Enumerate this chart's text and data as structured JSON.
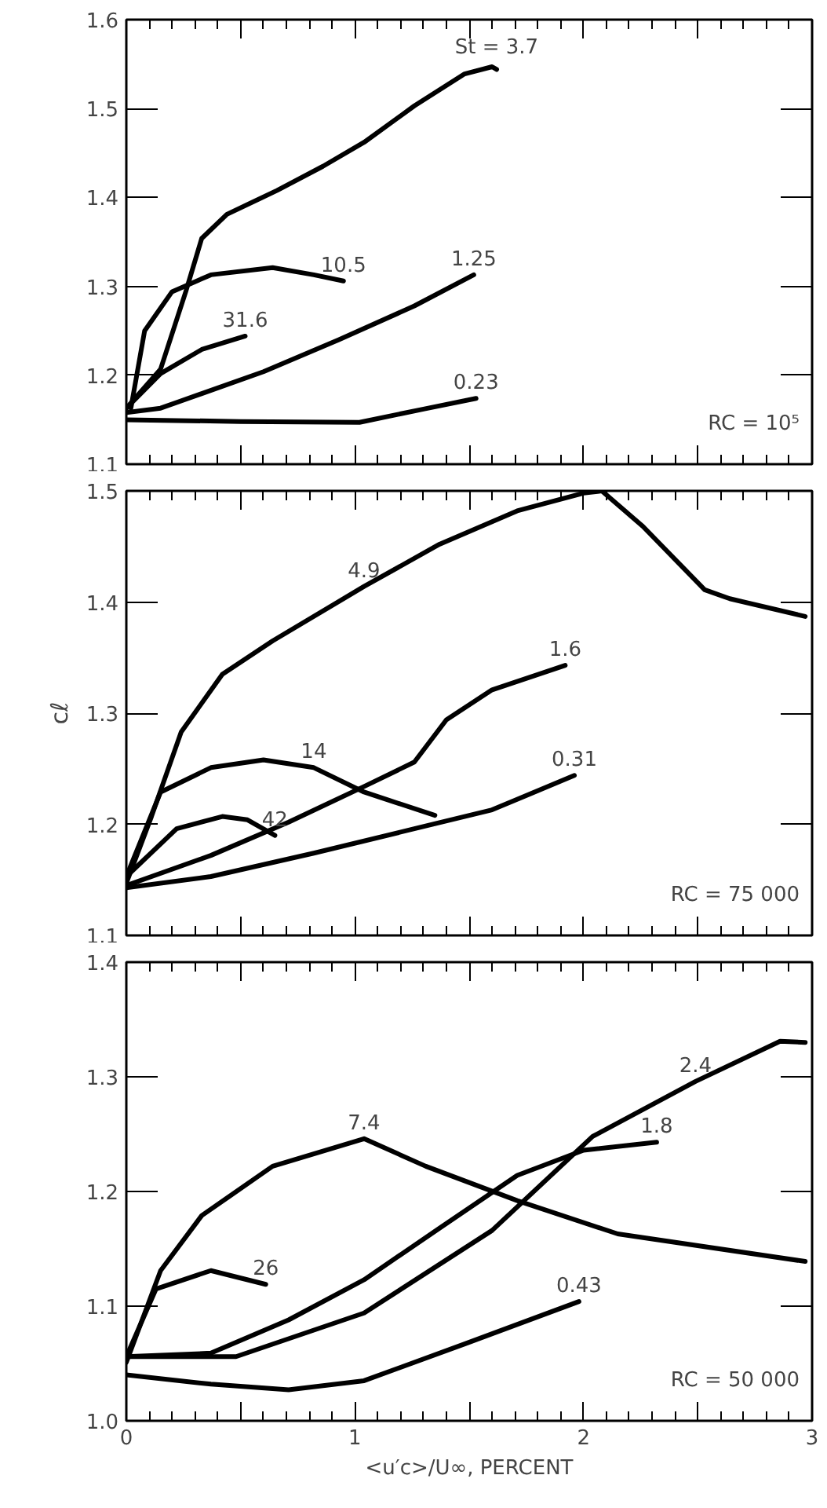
{
  "chart_data": [
    {
      "type": "line",
      "xlim": [
        0,
        3
      ],
      "ylim": [
        1.1,
        1.6
      ],
      "xticks": [
        0,
        {
          "value": 0.5,
          "label": null
        },
        1,
        {
          "value": 1.5,
          "label": null
        },
        2,
        {
          "value": 2.5,
          "label": null
        },
        3
      ],
      "yticks": [
        1.1,
        1.2,
        1.3,
        1.4,
        1.5,
        1.6
      ],
      "tick_labels": "y",
      "grid": false,
      "line_style": "solid",
      "marker": "none",
      "series": [
        {
          "color": "#000000",
          "x": [
            0,
            0.15,
            0.26,
            0.33,
            0.44,
            0.66,
            0.86,
            1.04,
            1.26,
            1.48,
            1.6,
            1.62
          ],
          "values": [
            1.163,
            1.207,
            1.294,
            1.354,
            1.381,
            1.408,
            1.435,
            1.462,
            1.503,
            1.539,
            1.547,
            1.544
          ]
        },
        {
          "color": "#000000",
          "x": [
            0.02,
            0.08,
            0.2,
            0.37,
            0.64,
            0.82,
            0.95
          ],
          "values": [
            1.163,
            1.25,
            1.294,
            1.313,
            1.321,
            1.313,
            1.306
          ]
        },
        {
          "color": "#000000",
          "x": [
            0,
            0.15,
            0.33,
            0.52
          ],
          "values": [
            1.163,
            1.202,
            1.229,
            1.244
          ]
        },
        {
          "color": "#000000",
          "x": [
            0,
            0.15,
            0.6,
            0.93,
            1.26,
            1.52
          ],
          "values": [
            1.158,
            1.163,
            1.204,
            1.24,
            1.278,
            1.313
          ]
        },
        {
          "color": "#000000",
          "x": [
            0,
            0.5,
            1.02,
            1.3,
            1.53
          ],
          "values": [
            1.15,
            1.148,
            1.147,
            1.162,
            1.174
          ]
        }
      ],
      "annotations": [
        {
          "text": "St = 3.7",
          "x": 1.62,
          "y": 1.544
        },
        {
          "text": "10.5",
          "x": 0.95,
          "y": 1.306
        },
        {
          "text": "31.6",
          "x": 0.52,
          "y": 1.244
        },
        {
          "text": "1.25",
          "x": 1.52,
          "y": 1.313
        },
        {
          "text": "0.23",
          "x": 1.53,
          "y": 1.174
        },
        "RC = 10⁵"
      ]
    },
    {
      "type": "line",
      "xlim": [
        0,
        3
      ],
      "ylim": [
        1.1,
        1.5
      ],
      "xticks": [
        0,
        {
          "value": 0.5,
          "label": null
        },
        1,
        {
          "value": 1.5,
          "label": null
        },
        2,
        {
          "value": 2.5,
          "label": null
        },
        3
      ],
      "yticks": [
        1.1,
        1.2,
        1.3,
        1.4,
        1.5
      ],
      "tick_labels": "y",
      "grid": false,
      "line_style": "solid",
      "marker": "none",
      "ylabel": "cℓ",
      "series": [
        {
          "color": "#000000",
          "x": [
            0,
            0.11,
            0.24,
            0.42,
            0.64,
            1.04,
            1.37,
            1.71,
            2.0,
            2.08,
            2.26,
            2.53,
            2.64,
            2.97
          ],
          "values": [
            1.147,
            1.207,
            1.283,
            1.335,
            1.365,
            1.414,
            1.452,
            1.482,
            1.498,
            1.5,
            1.468,
            1.411,
            1.403,
            1.387
          ]
        },
        {
          "color": "#000000",
          "x": [
            0,
            0.37,
            0.71,
            1.04,
            1.26,
            1.4,
            1.6,
            1.92
          ],
          "values": [
            1.145,
            1.172,
            1.202,
            1.234,
            1.256,
            1.294,
            1.321,
            1.343
          ]
        },
        {
          "color": "#000000",
          "x": [
            0,
            0.15,
            0.37,
            0.6,
            0.82,
            1.04,
            1.35
          ],
          "values": [
            1.153,
            1.229,
            1.251,
            1.258,
            1.251,
            1.229,
            1.208
          ]
        },
        {
          "color": "#000000",
          "x": [
            0,
            0.22,
            0.42,
            0.53,
            0.65
          ],
          "values": [
            1.153,
            1.196,
            1.207,
            1.204,
            1.19
          ]
        },
        {
          "color": "#000000",
          "x": [
            0,
            0.37,
            0.82,
            1.26,
            1.6,
            1.96
          ],
          "values": [
            1.143,
            1.153,
            1.174,
            1.196,
            1.213,
            1.244
          ]
        }
      ],
      "annotations": [
        {
          "text": "4.9",
          "x": 1.04,
          "y": 1.414
        },
        {
          "text": "1.6",
          "x": 1.92,
          "y": 1.343
        },
        {
          "text": "14",
          "x": 0.82,
          "y": 1.251
        },
        {
          "text": "42",
          "x": 0.65,
          "y": 1.19
        },
        {
          "text": "0.31",
          "x": 1.96,
          "y": 1.244
        },
        "RC = 75 000"
      ]
    },
    {
      "type": "line",
      "xlim": [
        0,
        3
      ],
      "ylim": [
        1.0,
        1.4
      ],
      "xticks": [
        0,
        {
          "value": 0.5,
          "label": null
        },
        1,
        {
          "value": 1.5,
          "label": null
        },
        2,
        {
          "value": 2.5,
          "label": null
        },
        3
      ],
      "yticks": [
        {
          "value": 1.0,
          "label": "1.0"
        },
        1.1,
        1.2,
        1.3,
        1.4
      ],
      "grid": false,
      "line_style": "solid",
      "marker": "none",
      "xlabel": "<u′c>/U∞, PERCENT",
      "series": [
        {
          "color": "#000000",
          "x": [
            0,
            0.15,
            0.33,
            0.64,
            1.04,
            1.31,
            1.71,
            2.15,
            2.97
          ],
          "values": [
            1.051,
            1.131,
            1.179,
            1.222,
            1.246,
            1.222,
            1.192,
            1.163,
            1.139
          ]
        },
        {
          "color": "#000000",
          "x": [
            0,
            0.13,
            0.37,
            0.61
          ],
          "values": [
            1.056,
            1.115,
            1.131,
            1.119
          ]
        },
        {
          "color": "#000000",
          "x": [
            0,
            0.37,
            0.71,
            1.04,
            1.37,
            1.71,
            2.0,
            2.32
          ],
          "values": [
            1.056,
            1.059,
            1.088,
            1.123,
            1.168,
            1.214,
            1.236,
            1.243
          ]
        },
        {
          "color": "#000000",
          "x": [
            0,
            0.48,
            1.04,
            1.6,
            2.04,
            2.49,
            2.86,
            2.97
          ],
          "values": [
            1.056,
            1.056,
            1.094,
            1.166,
            1.248,
            1.296,
            1.331,
            1.33
          ]
        },
        {
          "color": "#000000",
          "x": [
            0,
            0.37,
            0.71,
            1.04,
            1.48,
            1.98
          ],
          "values": [
            1.04,
            1.032,
            1.027,
            1.035,
            1.067,
            1.104
          ]
        }
      ],
      "annotations": [
        {
          "text": "7.4",
          "x": 1.04,
          "y": 1.246
        },
        {
          "text": "26",
          "x": 0.61,
          "y": 1.119
        },
        {
          "text": "1.8",
          "x": 2.32,
          "y": 1.243
        },
        {
          "text": "2.4",
          "x": 2.49,
          "y": 1.296
        },
        {
          "text": "0.43",
          "x": 1.98,
          "y": 1.104
        },
        "RC = 50 000"
      ]
    }
  ]
}
